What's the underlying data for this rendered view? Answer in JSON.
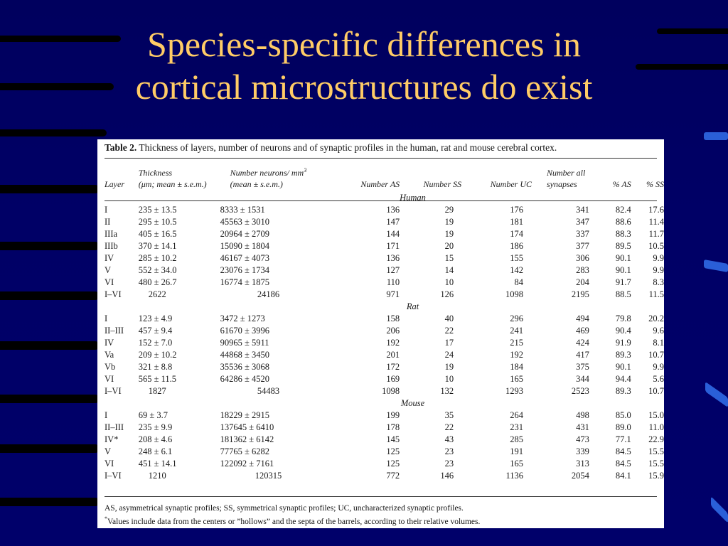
{
  "slide": {
    "title_line1": "Species-specific differences in",
    "title_line2": "cortical microstructures do exist"
  },
  "table": {
    "caption_label": "Table 2.",
    "caption_text": " Thickness of layers, number of neurons and of synaptic profiles in the human, rat and mouse cerebral cortex.",
    "headers": {
      "layer": "Layer",
      "thickness_1": "Thickness",
      "thickness_2": "(μm; mean ± s.e.m.)",
      "neurons_1": "Number neurons/ mm",
      "neurons_sup": "3",
      "neurons_2": "(mean ± s.e.m.)",
      "as": "Number AS",
      "ss": "Number SS",
      "uc": "Number UC",
      "all_1": "Number all",
      "all_2": "synapses",
      "pas": "% AS",
      "pss": "% SS"
    },
    "groups": [
      {
        "name": "Human",
        "rows": [
          [
            "I",
            "235 ± 13.5",
            "8333 ± 1531",
            "136",
            "29",
            "176",
            "341",
            "82.4",
            "17.6"
          ],
          [
            "II",
            "295 ± 10.5",
            "45563 ± 3010",
            "147",
            "19",
            "181",
            "347",
            "88.6",
            "11.4"
          ],
          [
            "IIIa",
            "405 ± 16.5",
            "20964 ± 2709",
            "144",
            "19",
            "174",
            "337",
            "88.3",
            "11.7"
          ],
          [
            "IIIb",
            "370 ± 14.1",
            "15090 ± 1804",
            "171",
            "20",
            "186",
            "377",
            "89.5",
            "10.5"
          ],
          [
            "IV",
            "285 ± 10.2",
            "46167 ± 4073",
            "136",
            "15",
            "155",
            "306",
            "90.1",
            "9.9"
          ],
          [
            "V",
            "552 ± 34.0",
            "23076 ± 1734",
            "127",
            "14",
            "142",
            "283",
            "90.1",
            "9.9"
          ],
          [
            "VI",
            "480 ± 26.7",
            "16774 ± 1875",
            "110",
            "10",
            "84",
            "204",
            "91.7",
            "8.3"
          ],
          [
            "I–VI",
            "2622",
            "24186",
            "971",
            "126",
            "1098",
            "2195",
            "88.5",
            "11.5"
          ]
        ]
      },
      {
        "name": "Rat",
        "rows": [
          [
            "I",
            "123 ± 4.9",
            "3472 ± 1273",
            "158",
            "40",
            "296",
            "494",
            "79.8",
            "20.2"
          ],
          [
            "II–III",
            "457 ± 9.4",
            "61670 ± 3996",
            "206",
            "22",
            "241",
            "469",
            "90.4",
            "9.6"
          ],
          [
            "IV",
            "152 ± 7.0",
            "90965 ± 5911",
            "192",
            "17",
            "215",
            "424",
            "91.9",
            "8.1"
          ],
          [
            "Va",
            "209 ± 10.2",
            "44868 ± 3450",
            "201",
            "24",
            "192",
            "417",
            "89.3",
            "10.7"
          ],
          [
            "Vb",
            "321 ± 8.8",
            "35536 ± 3068",
            "172",
            "19",
            "184",
            "375",
            "90.1",
            "9.9"
          ],
          [
            "VI",
            "565 ± 11.5",
            "64286 ± 4520",
            "169",
            "10",
            "165",
            "344",
            "94.4",
            "5.6"
          ],
          [
            "I–VI",
            "1827",
            "54483",
            "1098",
            "132",
            "1293",
            "2523",
            "89.3",
            "10.7"
          ]
        ]
      },
      {
        "name": "Mouse",
        "rows": [
          [
            "I",
            "69 ± 3.7",
            "18229 ± 2915",
            "199",
            "35",
            "264",
            "498",
            "85.0",
            "15.0"
          ],
          [
            "II–III",
            "235 ± 9.9",
            "137645 ± 6410",
            "178",
            "22",
            "231",
            "431",
            "89.0",
            "11.0"
          ],
          [
            "IV*",
            "208 ± 4.6",
            "181362 ± 6142",
            "145",
            "43",
            "285",
            "473",
            "77.1",
            "22.9"
          ],
          [
            "V",
            "248 ± 6.1",
            "77765 ± 6282",
            "125",
            "23",
            "191",
            "339",
            "84.5",
            "15.5"
          ],
          [
            "VI",
            "451 ± 14.1",
            "122092 ± 7161",
            "125",
            "23",
            "165",
            "313",
            "84.5",
            "15.5"
          ],
          [
            "I–VI",
            "1210",
            "120315",
            "772",
            "146",
            "1136",
            "2054",
            "84.1",
            "15.9"
          ]
        ]
      }
    ],
    "footnote_1": "AS, asymmetrical synaptic profiles; SS, symmetrical synaptic profiles; UC, uncharacterized synaptic profiles.",
    "footnote_2_mark": "*",
    "footnote_2": "Values include data from the centers or ”hollows” and the septa of the barrels, according to their relative volumes."
  },
  "colors": {
    "background": "#000066",
    "title": "#ffcc66",
    "stripes": "#000000",
    "accent": "#2a5fd8"
  }
}
